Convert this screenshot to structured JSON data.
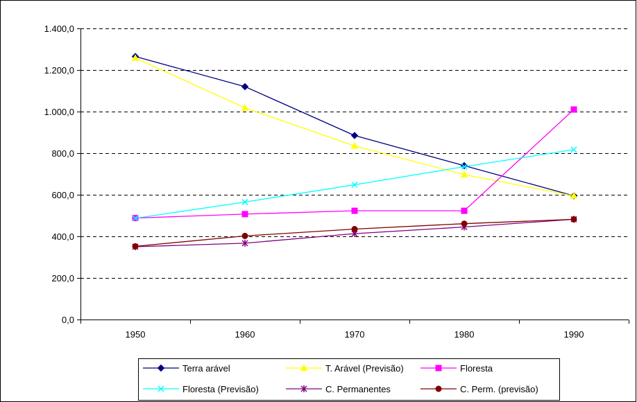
{
  "chart_data": {
    "type": "line",
    "title": "",
    "xlabel": "",
    "ylabel": "",
    "categories": [
      "1950",
      "1960",
      "1970",
      "1980",
      "1990"
    ],
    "ylim": [
      0,
      1400
    ],
    "yticks": [
      0,
      200,
      400,
      600,
      800,
      1000,
      1200,
      1400
    ],
    "ytick_labels": [
      "0,0",
      "200,0",
      "400,0",
      "600,0",
      "800,0",
      "1.000,0",
      "1.200,0",
      "1.400,0"
    ],
    "grid": "horizontal dashed",
    "legend_position": "bottom",
    "series": [
      {
        "name": "Terra arável",
        "color": "#000080",
        "marker": "diamond",
        "values": [
          1265,
          1120,
          885,
          740,
          595
        ]
      },
      {
        "name": "T. Arável (Previsão)",
        "color": "#FFFF00",
        "marker": "triangle",
        "values": [
          1258,
          1018,
          835,
          697,
          595
        ]
      },
      {
        "name": "Floresta",
        "color": "#FF00FF",
        "marker": "square",
        "values": [
          488,
          507,
          523,
          523,
          1010
        ]
      },
      {
        "name": "Floresta (Previsão)",
        "color": "#00FFFF",
        "marker": "x",
        "values": [
          487,
          565,
          648,
          735,
          817
        ]
      },
      {
        "name": "C. Permanentes",
        "color": "#800080",
        "marker": "star",
        "values": [
          350,
          367,
          413,
          445,
          482
        ]
      },
      {
        "name": "C. Perm. (previsão)",
        "color": "#800000",
        "marker": "circle",
        "values": [
          352,
          402,
          435,
          461,
          482
        ]
      }
    ]
  }
}
